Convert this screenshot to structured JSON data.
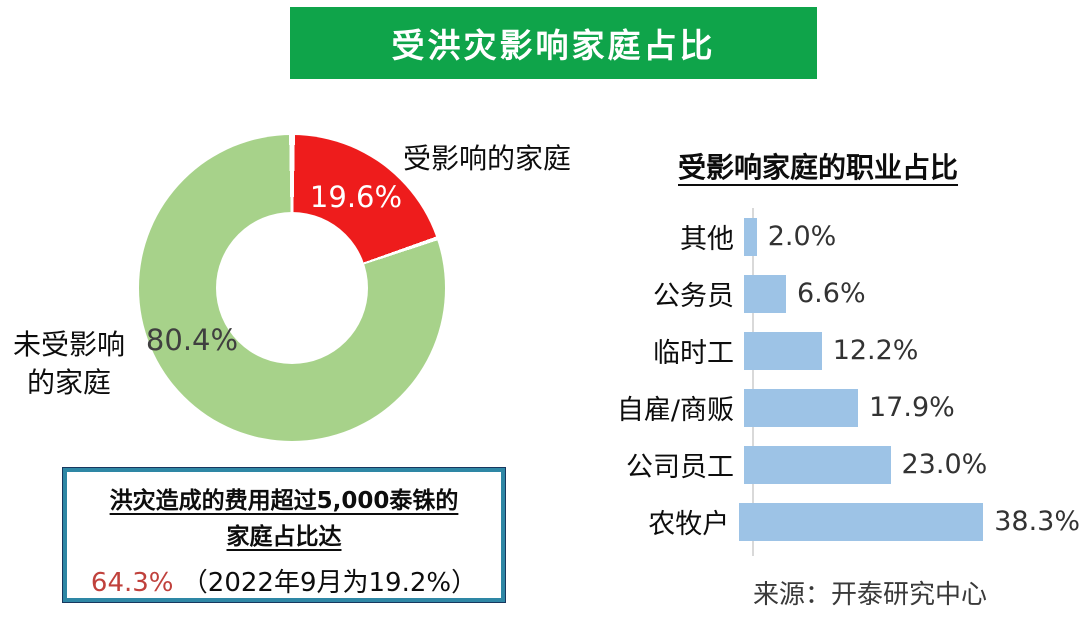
{
  "banner": {
    "title": "受洪灾影响家庭占比",
    "bg_color": "#0fa44a"
  },
  "donut": {
    "affected_label": "受影响的家庭",
    "unaffected_label_line1": "未受影响",
    "unaffected_label_line2": "的家庭",
    "affected_pct_label": "19.6%",
    "unaffected_pct_label": "80.4%"
  },
  "info_box": {
    "line1": "洪灾造成的费用超过5,000泰铢的",
    "line2": "家庭占比达",
    "highlight": "64.3%",
    "note": "（2022年9月为19.2%）",
    "highlight_color": "#c0413c",
    "border_color": "#2e87a5"
  },
  "bar_chart": {
    "title": "受影响家庭的职业占比",
    "bar_color": "#9dc3e6"
  },
  "source": "来源：开泰研究中心",
  "chart_data": [
    {
      "type": "pie",
      "donut": true,
      "title": "受洪灾影响家庭占比",
      "labels": [
        "受影响的家庭",
        "未受影响的家庭"
      ],
      "values": [
        19.6,
        80.4
      ],
      "value_labels": [
        "19.6%",
        "80.4%"
      ],
      "colors": [
        "#ee1c1c",
        "#a7d28a"
      ],
      "start_angle_deg": 0,
      "direction": "clockwise"
    },
    {
      "type": "bar",
      "orientation": "horizontal",
      "title": "受影响家庭的职业占比",
      "categories": [
        "其他",
        "公务员",
        "临时工",
        "自雇/商贩",
        "公司员工",
        "农牧户"
      ],
      "values": [
        2.0,
        6.6,
        12.2,
        17.9,
        23.0,
        38.3
      ],
      "value_labels": [
        "2.0%",
        "6.6%",
        "12.2%",
        "17.9%",
        "23.0%",
        "38.3%"
      ],
      "bar_color": "#9dc3e6",
      "xlim": [
        0,
        40
      ],
      "grid": false,
      "legend": false
    }
  ]
}
